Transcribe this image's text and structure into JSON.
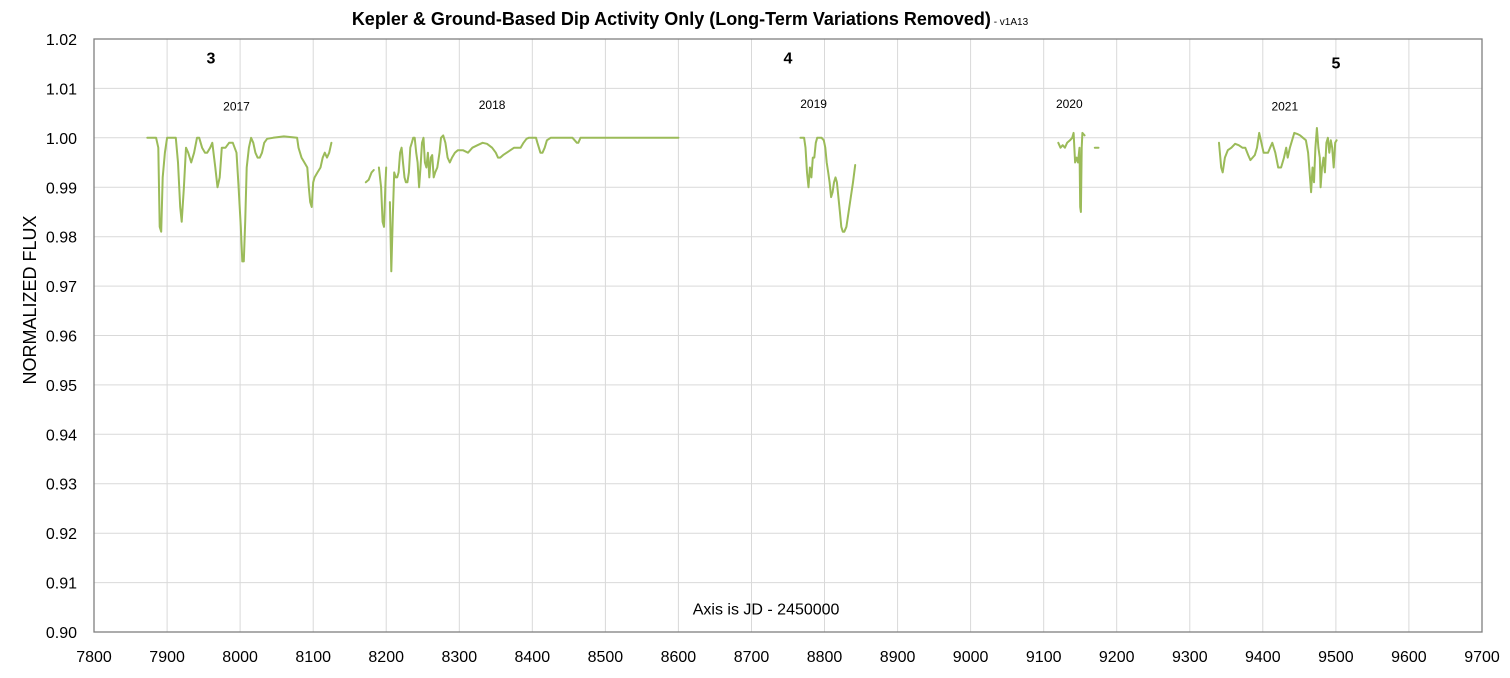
{
  "chart_data": {
    "type": "line",
    "title": "Kepler & Ground-Based Dip Activity Only (Long-Term Variations Removed)",
    "title_suffix": " - v1A13",
    "xlabel": "",
    "ylabel": "NORMALIZED FLUX",
    "xlim": [
      7800,
      9700
    ],
    "ylim": [
      0.9,
      1.02
    ],
    "x_ticks": [
      7800,
      7900,
      8000,
      8100,
      8200,
      8300,
      8400,
      8500,
      8600,
      8700,
      8800,
      8900,
      9000,
      9100,
      9200,
      9300,
      9400,
      9500,
      9600,
      9700
    ],
    "y_ticks": [
      0.9,
      0.91,
      0.92,
      0.93,
      0.94,
      0.95,
      0.96,
      0.97,
      0.98,
      0.99,
      1.0,
      1.01,
      1.02
    ],
    "x_tick_labels": [
      "7800",
      "7900",
      "8000",
      "8100",
      "8200",
      "8300",
      "8400",
      "8500",
      "8600",
      "8700",
      "8800",
      "8900",
      "9000",
      "9100",
      "9200",
      "9300",
      "9400",
      "9500",
      "9600",
      "9700"
    ],
    "y_tick_labels": [
      "0.90",
      "0.91",
      "0.92",
      "0.93",
      "0.94",
      "0.95",
      "0.96",
      "0.97",
      "0.98",
      "0.99",
      "1.00",
      "1.01",
      "1.02"
    ],
    "grid": true,
    "legend": "none",
    "colors": {
      "line": "#9BBB59",
      "grid": "#D9D9D9",
      "frame": "#7F7F7F"
    },
    "annotations": [
      {
        "text": "3",
        "x": 7960,
        "y": 1.015,
        "style": "num"
      },
      {
        "text": "4",
        "x": 8750,
        "y": 1.015,
        "style": "num"
      },
      {
        "text": "5",
        "x": 9500,
        "y": 1.014,
        "style": "num"
      },
      {
        "text": "2017",
        "x": 7995,
        "y": 1.0055,
        "style": "year"
      },
      {
        "text": "2018",
        "x": 8345,
        "y": 1.0058,
        "style": "year"
      },
      {
        "text": "2019",
        "x": 8785,
        "y": 1.006,
        "style": "year"
      },
      {
        "text": "2020",
        "x": 9135,
        "y": 1.006,
        "style": "year"
      },
      {
        "text": "2021",
        "x": 9430,
        "y": 1.0055,
        "style": "year"
      },
      {
        "text": "Axis is JD - 2450000",
        "x": 8720,
        "y": 0.9035,
        "style": "note"
      }
    ],
    "series": [
      {
        "points": [
          [
            7873,
            1.0
          ],
          [
            7885,
            1.0
          ],
          [
            7888,
            0.998
          ],
          [
            7890,
            0.982
          ],
          [
            7892,
            0.981
          ],
          [
            7894,
            0.992
          ],
          [
            7897,
            0.997
          ],
          [
            7900,
            1.0
          ],
          [
            7912,
            1.0
          ],
          [
            7915,
            0.995
          ],
          [
            7918,
            0.986
          ],
          [
            7920,
            0.983
          ],
          [
            7923,
            0.99
          ],
          [
            7926,
            0.998
          ],
          [
            7929,
            0.997
          ],
          [
            7933,
            0.995
          ],
          [
            7937,
            0.997
          ],
          [
            7941,
            1.0
          ],
          [
            7944,
            1.0
          ],
          [
            7948,
            0.998
          ],
          [
            7952,
            0.997
          ],
          [
            7955,
            0.997
          ],
          [
            7959,
            0.998
          ],
          [
            7962,
            0.999
          ],
          [
            7966,
            0.994
          ],
          [
            7969,
            0.99
          ],
          [
            7972,
            0.992
          ],
          [
            7975,
            0.998
          ],
          [
            7980,
            0.998
          ],
          [
            7985,
            0.999
          ],
          [
            7990,
            0.999
          ],
          [
            7995,
            0.997
          ],
          [
            7998,
            0.99
          ],
          [
            8001,
            0.982
          ],
          [
            8003,
            0.975
          ],
          [
            8005,
            0.975
          ],
          [
            8007,
            0.983
          ],
          [
            8009,
            0.994
          ],
          [
            8012,
            0.998
          ],
          [
            8015,
            1.0
          ],
          [
            8018,
            0.999
          ],
          [
            8021,
            0.997
          ],
          [
            8024,
            0.996
          ],
          [
            8027,
            0.996
          ],
          [
            8030,
            0.997
          ],
          [
            8033,
            0.999
          ],
          [
            8037,
            0.9998
          ],
          [
            8045,
            1.0
          ],
          [
            8060,
            1.0003
          ],
          [
            8078,
            1.0
          ],
          [
            8080,
            0.998
          ],
          [
            8084,
            0.996
          ],
          [
            8088,
            0.995
          ],
          [
            8092,
            0.994
          ],
          [
            8094,
            0.99
          ],
          [
            8096,
            0.987
          ],
          [
            8098,
            0.986
          ],
          [
            8100,
            0.991
          ],
          [
            8102,
            0.992
          ],
          [
            8106,
            0.993
          ],
          [
            8110,
            0.994
          ],
          [
            8113,
            0.996
          ],
          [
            8116,
            0.997
          ],
          [
            8119,
            0.996
          ],
          [
            8122,
            0.997
          ],
          [
            8125,
            0.999
          ]
        ]
      },
      {
        "points": [
          [
            8172,
            0.991
          ],
          [
            8176,
            0.9915
          ],
          [
            8180,
            0.993
          ],
          [
            8183,
            0.9935
          ]
        ]
      },
      {
        "points": [
          [
            8190,
            0.994
          ],
          [
            8193,
            0.99
          ],
          [
            8195,
            0.983
          ],
          [
            8197,
            0.982
          ],
          [
            8199,
            0.991
          ],
          [
            8200,
            0.994
          ]
        ]
      },
      {
        "points": [
          [
            8205,
            0.987
          ],
          [
            8207,
            0.973
          ],
          [
            8209,
            0.984
          ],
          [
            8211,
            0.993
          ],
          [
            8213,
            0.992
          ],
          [
            8215,
            0.992
          ],
          [
            8217,
            0.993
          ],
          [
            8219,
            0.997
          ],
          [
            8221,
            0.998
          ],
          [
            8223,
            0.995
          ],
          [
            8225,
            0.992
          ],
          [
            8227,
            0.991
          ],
          [
            8229,
            0.991
          ],
          [
            8231,
            0.993
          ],
          [
            8233,
            0.998
          ],
          [
            8235,
            0.999
          ],
          [
            8237,
            1.0
          ],
          [
            8239,
            1.0
          ],
          [
            8241,
            0.997
          ],
          [
            8243,
            0.995
          ],
          [
            8245,
            0.99
          ],
          [
            8247,
            0.994
          ],
          [
            8249,
            0.999
          ],
          [
            8251,
            1.0
          ],
          [
            8253,
            0.995
          ],
          [
            8255,
            0.994
          ],
          [
            8257,
            0.997
          ],
          [
            8259,
            0.992
          ],
          [
            8261,
            0.996
          ],
          [
            8263,
            0.9965
          ],
          [
            8265,
            0.992
          ],
          [
            8267,
            0.993
          ],
          [
            8270,
            0.994
          ],
          [
            8273,
            0.997
          ],
          [
            8275,
            1.0
          ],
          [
            8278,
            1.0005
          ],
          [
            8281,
            0.999
          ],
          [
            8284,
            0.996
          ],
          [
            8287,
            0.995
          ],
          [
            8290,
            0.996
          ],
          [
            8294,
            0.997
          ],
          [
            8298,
            0.9975
          ],
          [
            8305,
            0.9975
          ],
          [
            8312,
            0.997
          ],
          [
            8318,
            0.998
          ],
          [
            8325,
            0.9985
          ],
          [
            8332,
            0.999
          ],
          [
            8338,
            0.9988
          ],
          [
            8345,
            0.998
          ],
          [
            8350,
            0.997
          ],
          [
            8353,
            0.996
          ],
          [
            8356,
            0.996
          ],
          [
            8360,
            0.9965
          ],
          [
            8365,
            0.997
          ],
          [
            8370,
            0.9975
          ],
          [
            8375,
            0.998
          ],
          [
            8380,
            0.998
          ],
          [
            8384,
            0.998
          ],
          [
            8388,
            0.999
          ],
          [
            8392,
            0.9998
          ],
          [
            8395,
            1.0
          ],
          [
            8405,
            1.0
          ],
          [
            8407,
            0.999
          ],
          [
            8409,
            0.998
          ],
          [
            8411,
            0.997
          ],
          [
            8414,
            0.997
          ],
          [
            8417,
            0.998
          ],
          [
            8420,
            0.9995
          ],
          [
            8425,
            1.0
          ],
          [
            8455,
            1.0
          ],
          [
            8458,
            0.9995
          ],
          [
            8461,
            0.999
          ],
          [
            8463,
            0.999
          ],
          [
            8466,
            1.0
          ],
          [
            8500,
            1.0
          ],
          [
            8600,
            1.0
          ]
        ]
      },
      {
        "points": [
          [
            8767,
            1.0
          ],
          [
            8772,
            1.0
          ],
          [
            8774,
            0.998
          ],
          [
            8776,
            0.993
          ],
          [
            8778,
            0.99
          ],
          [
            8780,
            0.994
          ],
          [
            8782,
            0.992
          ],
          [
            8784,
            0.996
          ],
          [
            8786,
            0.996
          ],
          [
            8788,
            0.999
          ],
          [
            8790,
            1.0
          ],
          [
            8796,
            1.0
          ],
          [
            8799,
            0.9995
          ],
          [
            8801,
            0.998
          ],
          [
            8803,
            0.995
          ],
          [
            8805,
            0.993
          ],
          [
            8807,
            0.991
          ],
          [
            8809,
            0.988
          ],
          [
            8811,
            0.989
          ],
          [
            8813,
            0.991
          ],
          [
            8815,
            0.992
          ],
          [
            8817,
            0.991
          ],
          [
            8819,
            0.988
          ],
          [
            8821,
            0.985
          ],
          [
            8823,
            0.982
          ],
          [
            8825,
            0.981
          ],
          [
            8827,
            0.981
          ],
          [
            8830,
            0.982
          ],
          [
            8833,
            0.985
          ],
          [
            8836,
            0.988
          ],
          [
            8839,
            0.991
          ],
          [
            8842,
            0.9945
          ]
        ]
      },
      {
        "points": [
          [
            9120,
            0.999
          ],
          [
            9123,
            0.998
          ],
          [
            9126,
            0.9985
          ],
          [
            9129,
            0.998
          ],
          [
            9132,
            0.999
          ],
          [
            9136,
            0.9995
          ],
          [
            9139,
            1.0
          ],
          [
            9141,
            1.001
          ],
          [
            9143,
            0.995
          ],
          [
            9145,
            0.996
          ],
          [
            9147,
            0.995
          ],
          [
            9149,
            0.998
          ],
          [
            9150,
            0.986
          ],
          [
            9151,
            0.985
          ],
          [
            9152,
            0.998
          ],
          [
            9153,
            1.001
          ],
          [
            9156,
            1.0005
          ]
        ]
      },
      {
        "points": [
          [
            9170,
            0.998
          ],
          [
            9175,
            0.998
          ]
        ]
      },
      {
        "points": [
          [
            9340,
            0.999
          ],
          [
            9343,
            0.994
          ],
          [
            9345,
            0.993
          ],
          [
            9348,
            0.996
          ],
          [
            9352,
            0.9975
          ],
          [
            9357,
            0.998
          ],
          [
            9362,
            0.9988
          ],
          [
            9367,
            0.9985
          ],
          [
            9372,
            0.998
          ],
          [
            9376,
            0.998
          ],
          [
            9380,
            0.9965
          ],
          [
            9383,
            0.9955
          ],
          [
            9386,
            0.996
          ],
          [
            9389,
            0.9965
          ],
          [
            9392,
            0.998
          ],
          [
            9395,
            1.001
          ],
          [
            9398,
            0.999
          ],
          [
            9401,
            0.997
          ],
          [
            9407,
            0.997
          ],
          [
            9410,
            0.998
          ],
          [
            9413,
            0.999
          ],
          [
            9417,
            0.997
          ],
          [
            9421,
            0.994
          ],
          [
            9425,
            0.994
          ],
          [
            9429,
            0.996
          ],
          [
            9432,
            0.998
          ],
          [
            9434,
            0.996
          ],
          [
            9437,
            0.998
          ],
          [
            9440,
            0.9995
          ],
          [
            9443,
            1.001
          ],
          [
            9447,
            1.0008
          ],
          [
            9451,
            1.0005
          ],
          [
            9455,
            1.0
          ],
          [
            9459,
            0.9995
          ],
          [
            9462,
            0.997
          ],
          [
            9464,
            0.993
          ],
          [
            9466,
            0.989
          ],
          [
            9468,
            0.994
          ],
          [
            9470,
            0.991
          ],
          [
            9472,
            0.998
          ],
          [
            9474,
            1.002
          ],
          [
            9476,
            0.998
          ],
          [
            9478,
            0.996
          ],
          [
            9479,
            0.99
          ],
          [
            9481,
            0.994
          ],
          [
            9483,
            0.996
          ],
          [
            9485,
            0.993
          ],
          [
            9487,
            0.999
          ],
          [
            9489,
            1.0
          ],
          [
            9491,
            0.997
          ],
          [
            9493,
            0.9995
          ],
          [
            9495,
            0.998
          ],
          [
            9497,
            0.994
          ],
          [
            9499,
            0.999
          ],
          [
            9501,
            0.9995
          ]
        ]
      }
    ]
  }
}
